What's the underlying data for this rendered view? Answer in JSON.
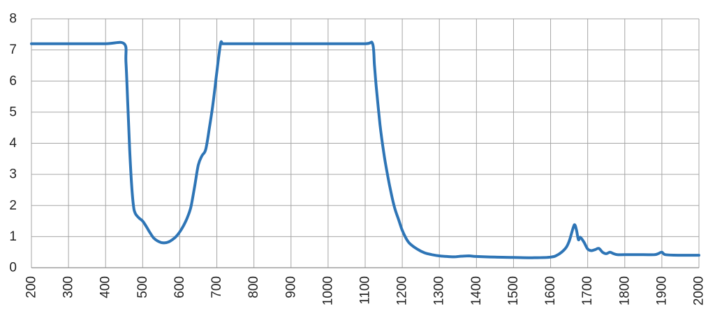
{
  "chart_data": {
    "type": "line",
    "title": "",
    "xlabel": "",
    "ylabel": "",
    "xlim": [
      200,
      2000
    ],
    "ylim": [
      0,
      8
    ],
    "x_ticks": [
      200,
      300,
      400,
      500,
      600,
      700,
      800,
      900,
      1000,
      1100,
      1200,
      1300,
      1400,
      1500,
      1600,
      1700,
      1800,
      1900,
      2000
    ],
    "y_ticks": [
      0,
      1,
      2,
      3,
      4,
      5,
      6,
      7,
      8
    ],
    "grid": true,
    "legend": "none",
    "line_color": "#2e75b6",
    "series": [
      {
        "x": [
          200,
          300,
          400,
          450,
          455,
          460,
          465,
          470,
          475,
          480,
          490,
          500,
          510,
          520,
          530,
          540,
          550,
          560,
          570,
          580,
          590,
          600,
          610,
          620,
          630,
          640,
          650,
          660,
          670,
          680,
          690,
          700,
          710,
          715,
          720,
          725,
          800,
          900,
          1000,
          1100,
          1120,
          1125,
          1130,
          1140,
          1150,
          1160,
          1170,
          1180,
          1190,
          1200,
          1210,
          1220,
          1240,
          1260,
          1280,
          1300,
          1320,
          1340,
          1360,
          1380,
          1400,
          1450,
          1500,
          1550,
          1600,
          1620,
          1640,
          1650,
          1660,
          1665,
          1670,
          1675,
          1680,
          1690,
          1700,
          1710,
          1720,
          1730,
          1740,
          1750,
          1760,
          1770,
          1780,
          1800,
          1850,
          1880,
          1890,
          1900,
          1910,
          1950,
          2000
        ],
        "y": [
          7.2,
          7.2,
          7.2,
          7.2,
          6.6,
          5.2,
          3.8,
          2.7,
          2.0,
          1.75,
          1.6,
          1.5,
          1.32,
          1.12,
          0.95,
          0.86,
          0.81,
          0.8,
          0.83,
          0.9,
          1.0,
          1.15,
          1.35,
          1.6,
          1.95,
          2.6,
          3.3,
          3.6,
          3.8,
          4.5,
          5.3,
          6.3,
          7.2,
          7.2,
          7.2,
          7.2,
          7.2,
          7.2,
          7.2,
          7.2,
          7.2,
          6.5,
          5.8,
          4.6,
          3.7,
          3.0,
          2.4,
          1.9,
          1.55,
          1.2,
          0.95,
          0.78,
          0.6,
          0.48,
          0.42,
          0.38,
          0.36,
          0.35,
          0.37,
          0.38,
          0.36,
          0.34,
          0.33,
          0.32,
          0.34,
          0.42,
          0.62,
          0.85,
          1.25,
          1.38,
          1.2,
          0.9,
          0.98,
          0.82,
          0.6,
          0.55,
          0.58,
          0.62,
          0.5,
          0.45,
          0.5,
          0.45,
          0.42,
          0.42,
          0.42,
          0.42,
          0.45,
          0.5,
          0.42,
          0.4,
          0.4
        ]
      }
    ]
  }
}
